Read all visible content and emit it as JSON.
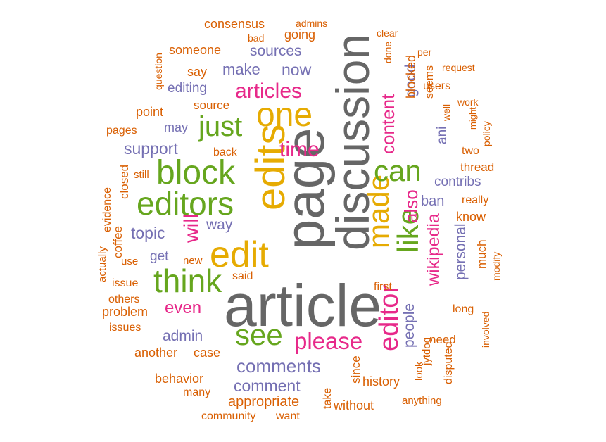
{
  "colors": {
    "gray": "#666666",
    "gold": "#e6ab02",
    "pink": "#e7298a",
    "green": "#66a61e",
    "purple": "#7570b3",
    "orange": "#d95f02"
  },
  "words": [
    {
      "text": "article",
      "color": "gray",
      "weight": 4,
      "rotated": false
    },
    {
      "text": "page",
      "color": "gray",
      "weight": 4,
      "rotated": true
    },
    {
      "text": "discussion",
      "color": "gray",
      "weight": 3,
      "rotated": true
    },
    {
      "text": "edits",
      "color": "gold",
      "weight": 3,
      "rotated": true
    },
    {
      "text": "edit",
      "color": "gold",
      "weight": 3,
      "rotated": false
    },
    {
      "text": "one",
      "color": "gold",
      "weight": 3,
      "rotated": false
    },
    {
      "text": "made",
      "color": "gold",
      "weight": 3,
      "rotated": true
    },
    {
      "text": "editor",
      "color": "pink",
      "weight": 3,
      "rotated": true
    },
    {
      "text": "block",
      "color": "green",
      "weight": 3,
      "rotated": false
    },
    {
      "text": "editors",
      "color": "green",
      "weight": 3,
      "rotated": false
    },
    {
      "text": "think",
      "color": "green",
      "weight": 3,
      "rotated": false
    },
    {
      "text": "just",
      "color": "green",
      "weight": 3,
      "rotated": false
    },
    {
      "text": "can",
      "color": "green",
      "weight": 3,
      "rotated": false
    },
    {
      "text": "see",
      "color": "green",
      "weight": 3,
      "rotated": false
    },
    {
      "text": "like",
      "color": "green",
      "weight": 3,
      "rotated": true
    },
    {
      "text": "will",
      "color": "pink",
      "weight": 2,
      "rotated": true
    },
    {
      "text": "time",
      "color": "pink",
      "weight": 2,
      "rotated": false
    },
    {
      "text": "articles",
      "color": "pink",
      "weight": 2,
      "rotated": false
    },
    {
      "text": "please",
      "color": "pink",
      "weight": 2,
      "rotated": false
    },
    {
      "text": "even",
      "color": "pink",
      "weight": 2,
      "rotated": false
    },
    {
      "text": "wikipedia",
      "color": "pink",
      "weight": 2,
      "rotated": true
    },
    {
      "text": "content",
      "color": "pink",
      "weight": 2,
      "rotated": true
    },
    {
      "text": "also",
      "color": "pink",
      "weight": 2,
      "rotated": true
    },
    {
      "text": "comments",
      "color": "purple",
      "weight": 2,
      "rotated": false
    },
    {
      "text": "comment",
      "color": "purple",
      "weight": 2,
      "rotated": false
    },
    {
      "text": "topic",
      "color": "purple",
      "weight": 2,
      "rotated": false
    },
    {
      "text": "admin",
      "color": "purple",
      "weight": 2,
      "rotated": false
    },
    {
      "text": "support",
      "color": "purple",
      "weight": 2,
      "rotated": false
    },
    {
      "text": "make",
      "color": "purple",
      "weight": 2,
      "rotated": false
    },
    {
      "text": "now",
      "color": "purple",
      "weight": 2,
      "rotated": false
    },
    {
      "text": "sources",
      "color": "purple",
      "weight": 2,
      "rotated": false
    },
    {
      "text": "way",
      "color": "purple",
      "weight": 2,
      "rotated": false
    },
    {
      "text": "people",
      "color": "purple",
      "weight": 2,
      "rotated": true
    },
    {
      "text": "good",
      "color": "purple",
      "weight": 2,
      "rotated": true
    },
    {
      "text": "ban",
      "color": "purple",
      "weight": 2,
      "rotated": false
    },
    {
      "text": "contribs",
      "color": "purple",
      "weight": 2,
      "rotated": false
    },
    {
      "text": "personal",
      "color": "purple",
      "weight": 2,
      "rotated": true
    },
    {
      "text": "ani",
      "color": "purple",
      "weight": 1,
      "rotated": true
    },
    {
      "text": "may",
      "color": "purple",
      "weight": 1,
      "rotated": false
    },
    {
      "text": "get",
      "color": "purple",
      "weight": 1,
      "rotated": false
    },
    {
      "text": "editing",
      "color": "purple",
      "weight": 1,
      "rotated": false
    },
    {
      "text": "appropriate",
      "color": "orange",
      "weight": 1,
      "rotated": false
    },
    {
      "text": "behavior",
      "color": "orange",
      "weight": 1,
      "rotated": false
    },
    {
      "text": "another",
      "color": "orange",
      "weight": 1,
      "rotated": false
    },
    {
      "text": "case",
      "color": "orange",
      "weight": 1,
      "rotated": false
    },
    {
      "text": "problem",
      "color": "orange",
      "weight": 1,
      "rotated": false
    },
    {
      "text": "history",
      "color": "orange",
      "weight": 1,
      "rotated": false
    },
    {
      "text": "without",
      "color": "orange",
      "weight": 1,
      "rotated": false
    },
    {
      "text": "consensus",
      "color": "orange",
      "weight": 1,
      "rotated": false
    },
    {
      "text": "someone",
      "color": "orange",
      "weight": 1,
      "rotated": false
    },
    {
      "text": "going",
      "color": "orange",
      "weight": 1,
      "rotated": false
    },
    {
      "text": "point",
      "color": "orange",
      "weight": 1,
      "rotated": false
    },
    {
      "text": "source",
      "color": "orange",
      "weight": 1,
      "rotated": false
    },
    {
      "text": "say",
      "color": "orange",
      "weight": 1,
      "rotated": false
    },
    {
      "text": "back",
      "color": "orange",
      "weight": 1,
      "rotated": false
    },
    {
      "text": "pages",
      "color": "orange",
      "weight": 1,
      "rotated": false
    },
    {
      "text": "closed",
      "color": "orange",
      "weight": 1,
      "rotated": true
    },
    {
      "text": "still",
      "color": "orange",
      "weight": 1,
      "rotated": false
    },
    {
      "text": "evidence",
      "color": "orange",
      "weight": 1,
      "rotated": true
    },
    {
      "text": "coffee",
      "color": "orange",
      "weight": 1,
      "rotated": true
    },
    {
      "text": "said",
      "color": "orange",
      "weight": 1,
      "rotated": false
    },
    {
      "text": "new",
      "color": "orange",
      "weight": 1,
      "rotated": false
    },
    {
      "text": "use",
      "color": "orange",
      "weight": 1,
      "rotated": false
    },
    {
      "text": "actually",
      "color": "orange",
      "weight": 1,
      "rotated": true
    },
    {
      "text": "issue",
      "color": "orange",
      "weight": 1,
      "rotated": false
    },
    {
      "text": "others",
      "color": "orange",
      "weight": 1,
      "rotated": false
    },
    {
      "text": "issues",
      "color": "orange",
      "weight": 1,
      "rotated": false
    },
    {
      "text": "many",
      "color": "orange",
      "weight": 1,
      "rotated": false
    },
    {
      "text": "community",
      "color": "orange",
      "weight": 1,
      "rotated": false
    },
    {
      "text": "want",
      "color": "orange",
      "weight": 1,
      "rotated": false
    },
    {
      "text": "take",
      "color": "orange",
      "weight": 1,
      "rotated": true
    },
    {
      "text": "since",
      "color": "orange",
      "weight": 1,
      "rotated": true
    },
    {
      "text": "first",
      "color": "orange",
      "weight": 1,
      "rotated": false
    },
    {
      "text": "look",
      "color": "orange",
      "weight": 1,
      "rotated": true
    },
    {
      "text": "jytdog",
      "color": "orange",
      "weight": 1,
      "rotated": true
    },
    {
      "text": "disputed",
      "color": "orange",
      "weight": 1,
      "rotated": true
    },
    {
      "text": "anything",
      "color": "orange",
      "weight": 1,
      "rotated": false
    },
    {
      "text": "need",
      "color": "orange",
      "weight": 1,
      "rotated": false
    },
    {
      "text": "long",
      "color": "orange",
      "weight": 1,
      "rotated": false
    },
    {
      "text": "involved",
      "color": "orange",
      "weight": 1,
      "rotated": true
    },
    {
      "text": "much",
      "color": "orange",
      "weight": 1,
      "rotated": true
    },
    {
      "text": "modify",
      "color": "orange",
      "weight": 1,
      "rotated": true
    },
    {
      "text": "know",
      "color": "orange",
      "weight": 1,
      "rotated": false
    },
    {
      "text": "really",
      "color": "orange",
      "weight": 1,
      "rotated": false
    },
    {
      "text": "thread",
      "color": "orange",
      "weight": 1,
      "rotated": false
    },
    {
      "text": "two",
      "color": "orange",
      "weight": 1,
      "rotated": false
    },
    {
      "text": "might",
      "color": "orange",
      "weight": 1,
      "rotated": true
    },
    {
      "text": "policy",
      "color": "orange",
      "weight": 1,
      "rotated": true
    },
    {
      "text": "well",
      "color": "orange",
      "weight": 1,
      "rotated": true
    },
    {
      "text": "work",
      "color": "orange",
      "weight": 1,
      "rotated": false
    },
    {
      "text": "seems",
      "color": "orange",
      "weight": 1,
      "rotated": true
    },
    {
      "text": "users",
      "color": "orange",
      "weight": 1,
      "rotated": false
    },
    {
      "text": "blocked",
      "color": "orange",
      "weight": 1,
      "rotated": true
    },
    {
      "text": "done",
      "color": "orange",
      "weight": 1,
      "rotated": true
    },
    {
      "text": "per",
      "color": "orange",
      "weight": 1,
      "rotated": false
    },
    {
      "text": "request",
      "color": "orange",
      "weight": 1,
      "rotated": false
    },
    {
      "text": "clear",
      "color": "orange",
      "weight": 1,
      "rotated": false
    },
    {
      "text": "admins",
      "color": "orange",
      "weight": 1,
      "rotated": false
    },
    {
      "text": "bad",
      "color": "orange",
      "weight": 1,
      "rotated": false
    },
    {
      "text": "question",
      "color": "orange",
      "weight": 1,
      "rotated": true
    }
  ]
}
